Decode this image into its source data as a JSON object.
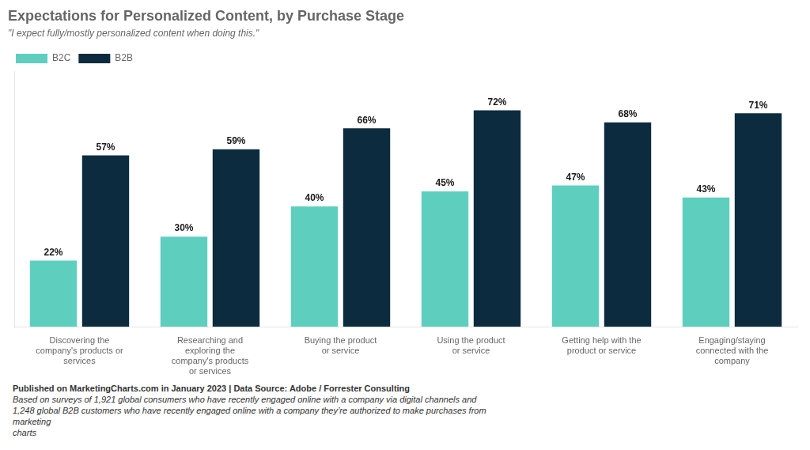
{
  "chart_data": {
    "type": "bar",
    "title": "Expectations for Personalized Content, by Purchase Stage",
    "subtitle": "\"I expect fully/mostly personalized content when doing this.\"",
    "categories": [
      "Discovering the\ncompany's products or\nservices",
      "Researching and\nexploring the\ncompany's products\nor services",
      "Buying the product\nor service",
      "Using the product\nor service",
      "Getting help with the\nproduct or service",
      "Engaging/staying\nconnected with the\ncompany"
    ],
    "series": [
      {
        "name": "B2C",
        "color": "#5ECFBF",
        "values": [
          22,
          30,
          40,
          45,
          47,
          43
        ],
        "value_labels": [
          "22%",
          "30%",
          "40%",
          "45%",
          "47%",
          "43%"
        ]
      },
      {
        "name": "B2B",
        "color": "#0D2B3E",
        "values": [
          57,
          59,
          66,
          72,
          68,
          71
        ],
        "value_labels": [
          "57%",
          "59%",
          "66%",
          "72%",
          "68%",
          "71%"
        ]
      }
    ],
    "ylim": [
      0,
      85
    ],
    "yticks": [],
    "tick_labels": "x",
    "grid": false,
    "legend": "upper left",
    "data_labels": true,
    "annotations": [
      "Published on MarketingCharts.com in January 2023 | Data Source: Adobe / Forrester Consulting",
      "Based on surveys of 1,921 global consumers who have recently engaged online with a company via digital channels and",
      "1,248 global B2B customers who have recently engaged online with a company they’re authorized to make purchases from",
      "marketing\ncharts"
    ]
  }
}
